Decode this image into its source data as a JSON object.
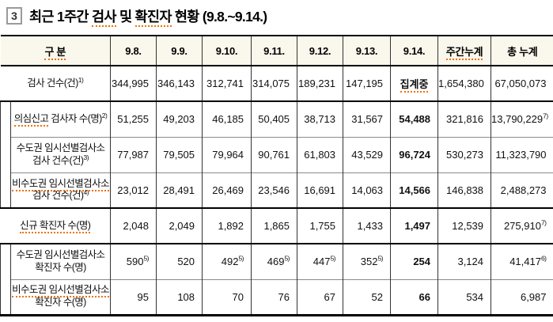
{
  "title": {
    "box_number": "3",
    "segments": [
      {
        "t": "최근 1주간 "
      },
      {
        "t": "검사",
        "spell": true
      },
      {
        "t": " 및 "
      },
      {
        "t": "확진자",
        "spell": true
      },
      {
        "t": " 현황 "
      },
      {
        "t": "(9.8.~9.14.)"
      }
    ]
  },
  "table": {
    "header": [
      {
        "t": "구 분",
        "spell": true
      },
      {
        "t": "9.8."
      },
      {
        "t": "9.9."
      },
      {
        "t": "9.10."
      },
      {
        "t": "9.11."
      },
      {
        "t": "9.12."
      },
      {
        "t": "9.13."
      },
      {
        "t": "9.14."
      },
      {
        "t": "주간누계",
        "spell": true
      },
      {
        "t": "총 누계"
      }
    ],
    "groups": [
      {
        "indent": false,
        "rows": [
          {
            "label_lines": [
              [
                {
                  "t": "검사 건수(건)"
                },
                {
                  "sup": "1)"
                }
              ]
            ],
            "cells": [
              "344,995",
              "346,143",
              "312,741",
              "314,075",
              "189,231",
              "147,195",
              {
                "v": "집계중",
                "bold": true,
                "spell": true,
                "center": true
              },
              "1,654,380",
              "67,050,073"
            ]
          }
        ]
      },
      {
        "indent": true,
        "rows": [
          {
            "label_lines": [
              [
                {
                  "t": "의심신고",
                  "spell": true
                },
                {
                  "t": " 검사자 수(명)"
                },
                {
                  "sup": "2)"
                }
              ]
            ],
            "cells": [
              "51,255",
              "49,203",
              "46,185",
              "50,405",
              "38,713",
              "31,567",
              {
                "v": "54,488",
                "bold": true
              },
              "321,816",
              {
                "v": "13,790,229",
                "sup": "7)"
              }
            ]
          },
          {
            "label_lines": [
              [
                {
                  "t": "수도권 임시선별검사소"
                }
              ],
              [
                {
                  "t": "검사 건수(건)"
                },
                {
                  "sup": "3)"
                }
              ]
            ],
            "cells": [
              "77,987",
              "79,505",
              "79,964",
              "90,761",
              "61,803",
              "43,529",
              {
                "v": "96,724",
                "bold": true
              },
              "530,273",
              "11,323,790"
            ]
          },
          {
            "label_lines": [
              [
                {
                  "t": "비수도권 임시선별검사소",
                  "spell": true
                }
              ],
              [
                {
                  "t": "검사 건수(건)"
                },
                {
                  "sup": "4)"
                }
              ]
            ],
            "cells": [
              "23,012",
              "28,491",
              "26,469",
              "23,546",
              "16,691",
              "14,063",
              {
                "v": "14,566",
                "bold": true
              },
              "146,838",
              "2,488,273"
            ]
          }
        ]
      },
      {
        "indent": false,
        "rows": [
          {
            "label_lines": [
              [
                {
                  "t": "신규 확진자 수(명)",
                  "spell": true
                }
              ]
            ],
            "cells": [
              "2,048",
              "2,049",
              "1,892",
              "1,865",
              "1,755",
              "1,433",
              {
                "v": "1,497",
                "bold": true
              },
              "12,539",
              {
                "v": "275,910",
                "sup": "7)"
              }
            ]
          }
        ]
      },
      {
        "indent": true,
        "rows": [
          {
            "label_lines": [
              [
                {
                  "t": "수도권 임시선별검사소"
                }
              ],
              [
                {
                  "t": "확진자 수(명)"
                }
              ]
            ],
            "cells": [
              {
                "v": "590",
                "sup": "5)"
              },
              "520",
              {
                "v": "492",
                "sup": "5)"
              },
              {
                "v": "469",
                "sup": "5)"
              },
              {
                "v": "447",
                "sup": "5)"
              },
              {
                "v": "352",
                "sup": "5)"
              },
              {
                "v": "254",
                "bold": true
              },
              "3,124",
              {
                "v": "41,417",
                "sup": "6)"
              }
            ]
          },
          {
            "label_lines": [
              [
                {
                  "t": "비수도권 임시선별검사소",
                  "spell": true
                }
              ],
              [
                {
                  "t": "확진자 수(명)"
                }
              ]
            ],
            "cells": [
              "95",
              "108",
              "70",
              "76",
              "67",
              "52",
              {
                "v": "66",
                "bold": true
              },
              "534",
              "6,987"
            ]
          }
        ]
      }
    ]
  }
}
